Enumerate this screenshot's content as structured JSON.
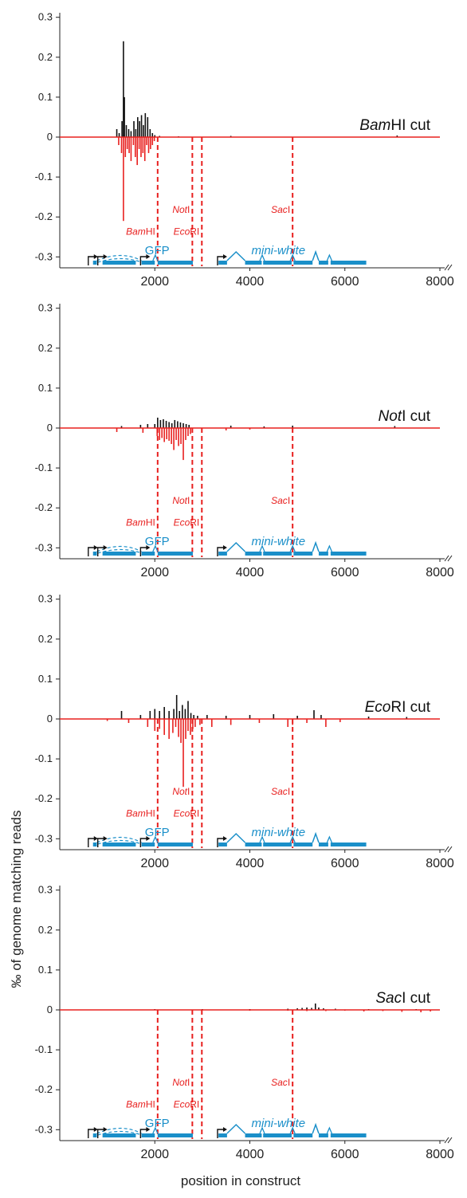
{
  "colors": {
    "positive_strand": "#111111",
    "negative_strand": "#e8201f",
    "restriction_site": "#e8201f",
    "construct_map": "#1a8fc9",
    "promoter_arrow": "#111111"
  },
  "axes": {
    "ylabel": "‰ of genome matching reads",
    "xlabel": "position in construct",
    "y_ticks": [
      {
        "value": 0.3,
        "label": "0.3"
      },
      {
        "value": 0.2,
        "label": "0.2"
      },
      {
        "value": 0.1,
        "label": "0.1"
      },
      {
        "value": 0,
        "label": "0"
      },
      {
        "value": -0.1,
        "label": "-0.1"
      },
      {
        "value": -0.2,
        "label": "-0.2"
      },
      {
        "value": -0.3,
        "label": "-0.3"
      }
    ],
    "x_ticks": [
      {
        "value": 2000,
        "label": "2000"
      },
      {
        "value": 4000,
        "label": "4000"
      },
      {
        "value": 6000,
        "label": "6000"
      },
      {
        "value": 8000,
        "label": "8000"
      }
    ]
  },
  "construct": {
    "gene_labels": [
      {
        "name": "GFP",
        "x": 2050,
        "italic": false
      },
      {
        "name": "mini-white",
        "x": 4600,
        "italic": true
      }
    ],
    "restriction_sites": [
      {
        "name_italic": "Bam",
        "name_rest": "HI",
        "x": 2060,
        "label_y": -0.245
      },
      {
        "name_italic": "Not",
        "name_rest": "I",
        "x": 2790,
        "label_y": -0.19
      },
      {
        "name_italic": "Eco",
        "name_rest": "RI",
        "x": 2990,
        "label_y": -0.245
      },
      {
        "name_italic": "Sac",
        "name_rest": "I",
        "x": 4900,
        "label_y": -0.19
      }
    ],
    "promoters": [
      600,
      800,
      1700,
      3320
    ],
    "exons": [
      [
        700,
        780
      ],
      [
        900,
        1600
      ],
      [
        1720,
        2000
      ],
      [
        2060,
        2800
      ],
      [
        3340,
        3520
      ],
      [
        3900,
        4250
      ],
      [
        4280,
        4880
      ],
      [
        4920,
        5320
      ],
      [
        5450,
        5650
      ],
      [
        5700,
        6450
      ]
    ],
    "introns": [
      [
        3520,
        3900
      ],
      [
        5320,
        5450
      ]
    ],
    "small_introns": [
      2010,
      4260,
      4900,
      5675
    ]
  },
  "chart_data": [
    {
      "type": "line",
      "title_italic": "Bam",
      "title_rest": "HI cut",
      "xlim": [
        0,
        8000
      ],
      "ylim": [
        -0.32,
        0.3
      ],
      "series": [
        {
          "strand": "positive",
          "x": [
            1200,
            1250,
            1310,
            1340,
            1360,
            1400,
            1450,
            1500,
            1560,
            1600,
            1640,
            1680,
            1720,
            1760,
            1800,
            1850,
            1900,
            1950,
            2000,
            2100,
            2500,
            3600,
            7100
          ],
          "values": [
            0.02,
            0.01,
            0.04,
            0.24,
            0.1,
            0.03,
            0.02,
            0.015,
            0.04,
            0.02,
            0.05,
            0.04,
            0.055,
            0.03,
            0.06,
            0.05,
            0.02,
            0.01,
            0.005,
            0.003,
            0.002,
            0.003,
            0.004
          ]
        },
        {
          "strand": "negative",
          "x": [
            1240,
            1300,
            1340,
            1380,
            1420,
            1460,
            1500,
            1550,
            1590,
            1630,
            1670,
            1710,
            1750,
            1790,
            1830,
            1870,
            1910,
            1950,
            1990
          ],
          "values": [
            -0.02,
            -0.04,
            -0.21,
            -0.05,
            -0.03,
            -0.04,
            -0.06,
            -0.02,
            -0.05,
            -0.07,
            -0.03,
            -0.05,
            -0.04,
            -0.06,
            -0.02,
            -0.04,
            -0.03,
            -0.02,
            -0.01
          ]
        }
      ]
    },
    {
      "type": "line",
      "title_italic": "Not",
      "title_rest": "I cut",
      "xlim": [
        0,
        8000
      ],
      "ylim": [
        -0.32,
        0.3
      ],
      "series": [
        {
          "strand": "positive",
          "x": [
            1300,
            1700,
            1850,
            2000,
            2060,
            2120,
            2180,
            2240,
            2300,
            2360,
            2420,
            2480,
            2540,
            2600,
            2660,
            2720,
            3600,
            4300,
            4900,
            7050
          ],
          "values": [
            0.005,
            0.008,
            0.01,
            0.01,
            0.026,
            0.02,
            0.022,
            0.018,
            0.015,
            0.012,
            0.02,
            0.017,
            0.014,
            0.012,
            0.01,
            0.008,
            0.006,
            0.004,
            0.006,
            0.005
          ]
        },
        {
          "strand": "negative",
          "x": [
            1200,
            1750,
            2050,
            2100,
            2150,
            2200,
            2250,
            2300,
            2350,
            2400,
            2450,
            2500,
            2550,
            2600,
            2650,
            2700,
            2750,
            3500,
            4000,
            4900
          ],
          "values": [
            -0.01,
            -0.012,
            -0.02,
            -0.03,
            -0.025,
            -0.035,
            -0.028,
            -0.032,
            -0.04,
            -0.055,
            -0.03,
            -0.045,
            -0.04,
            -0.08,
            -0.03,
            -0.02,
            -0.015,
            -0.006,
            -0.004,
            -0.01
          ]
        }
      ]
    },
    {
      "type": "line",
      "title_italic": "Eco",
      "title_rest": "RI cut",
      "xlim": [
        0,
        8000
      ],
      "ylim": [
        -0.32,
        0.3
      ],
      "series": [
        {
          "strand": "positive",
          "x": [
            1300,
            1700,
            1900,
            2000,
            2100,
            2200,
            2300,
            2400,
            2460,
            2520,
            2580,
            2640,
            2700,
            2760,
            2820,
            2900,
            3100,
            3500,
            4000,
            4500,
            5000,
            5350,
            5500,
            6500,
            7300
          ],
          "values": [
            0.02,
            0.01,
            0.02,
            0.025,
            0.02,
            0.03,
            0.02,
            0.025,
            0.06,
            0.02,
            0.035,
            0.025,
            0.045,
            0.015,
            0.01,
            0.008,
            0.01,
            0.008,
            0.01,
            0.012,
            0.008,
            0.022,
            0.01,
            0.006,
            0.005
          ]
        },
        {
          "strand": "negative",
          "x": [
            1000,
            1450,
            1850,
            2000,
            2100,
            2200,
            2300,
            2380,
            2440,
            2500,
            2550,
            2600,
            2650,
            2700,
            2750,
            2800,
            2850,
            2950,
            3200,
            3600,
            4200,
            4800,
            4900,
            5200,
            5600,
            5900
          ],
          "values": [
            -0.005,
            -0.01,
            -0.02,
            -0.03,
            -0.025,
            -0.04,
            -0.05,
            -0.035,
            -0.02,
            -0.045,
            -0.06,
            -0.17,
            -0.05,
            -0.03,
            -0.04,
            -0.025,
            -0.02,
            -0.015,
            -0.02,
            -0.015,
            -0.01,
            -0.02,
            -0.015,
            -0.01,
            -0.02,
            -0.008
          ]
        }
      ]
    },
    {
      "type": "line",
      "title_italic": "Sac",
      "title_rest": "I cut",
      "xlim": [
        0,
        8000
      ],
      "ylim": [
        -0.32,
        0.3
      ],
      "series": [
        {
          "strand": "positive",
          "x": [
            2000,
            3000,
            4000,
            4800,
            5000,
            5100,
            5200,
            5300,
            5380,
            5450,
            5550,
            5800,
            6500,
            7500
          ],
          "values": [
            0.002,
            0.002,
            0.002,
            0.003,
            0.004,
            0.005,
            0.006,
            0.005,
            0.016,
            0.006,
            0.004,
            0.003,
            0.002,
            0.002
          ]
        },
        {
          "strand": "negative",
          "x": [
            2000,
            3000,
            4000,
            4800,
            5200,
            5600,
            6000,
            6400,
            6800,
            7200,
            7600,
            7800
          ],
          "values": [
            -0.001,
            -0.001,
            -0.002,
            -0.002,
            -0.003,
            -0.003,
            -0.002,
            -0.004,
            -0.003,
            -0.005,
            -0.006,
            -0.004
          ]
        }
      ]
    }
  ]
}
